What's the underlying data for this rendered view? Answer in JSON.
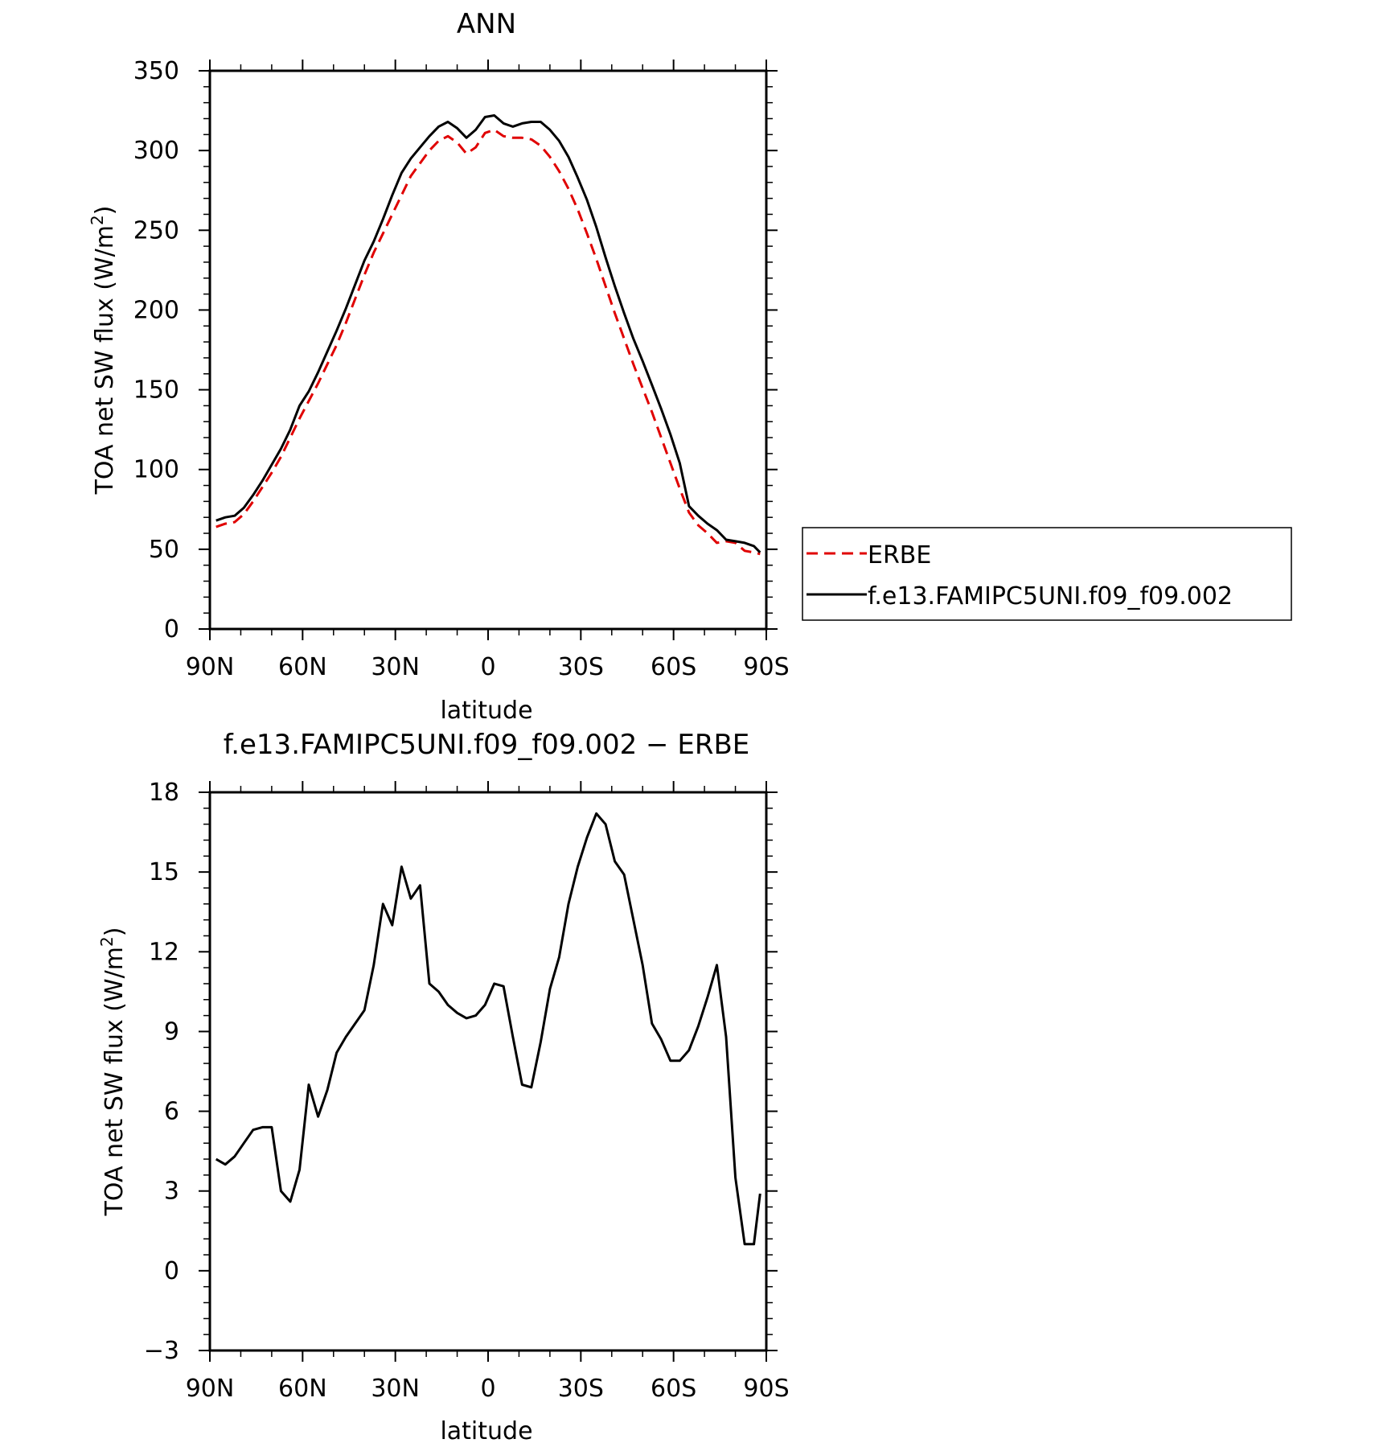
{
  "chart_data": [
    {
      "type": "line",
      "title": "ANN",
      "xlabel": "latitude",
      "ylabel": "TOA net SW flux (W/m²)",
      "xlim": [
        90,
        -90
      ],
      "ylim": [
        0,
        350
      ],
      "xticks": [
        {
          "value": 90,
          "label": "90N"
        },
        {
          "value": 60,
          "label": "60N"
        },
        {
          "value": 30,
          "label": "30N"
        },
        {
          "value": 0,
          "label": "0"
        },
        {
          "value": -30,
          "label": "30S"
        },
        {
          "value": -60,
          "label": "60S"
        },
        {
          "value": -90,
          "label": "90S"
        }
      ],
      "yticks": [
        0,
        50,
        100,
        150,
        200,
        250,
        300,
        350
      ],
      "legend_position": "right",
      "x": [
        88,
        85,
        82,
        79,
        76,
        73,
        70,
        67,
        64,
        61,
        58,
        55,
        52,
        49,
        46,
        43,
        40,
        37,
        34,
        31,
        28,
        25,
        22,
        19,
        16,
        13,
        10,
        7,
        4,
        1,
        -2,
        -5,
        -8,
        -11,
        -14,
        -17,
        -20,
        -23,
        -26,
        -29,
        -32,
        -35,
        -38,
        -41,
        -44,
        -47,
        -50,
        -53,
        -56,
        -59,
        -62,
        -65,
        -68,
        -71,
        -74,
        -77,
        -80,
        -83,
        -86,
        -88
      ],
      "series": [
        {
          "name": "ERBE",
          "color": "#e00000",
          "dash": "dashed",
          "values": [
            64,
            66,
            67,
            72,
            80,
            89,
            98,
            108,
            120,
            132,
            143,
            154,
            166,
            178,
            192,
            207,
            222,
            236,
            248,
            260,
            272,
            284,
            292,
            300,
            306,
            309,
            305,
            298,
            302,
            311,
            313,
            309,
            308,
            308,
            307,
            303,
            296,
            287,
            276,
            263,
            248,
            232,
            215,
            198,
            182,
            166,
            151,
            136,
            120,
            104,
            88,
            73,
            65,
            60,
            54,
            55,
            54,
            49,
            48,
            47
          ]
        },
        {
          "name": "f.e13.FAMIPC5UNI.f09_f09.002",
          "color": "#000000",
          "dash": "solid",
          "values": [
            68,
            70,
            71,
            76,
            84,
            93,
            103,
            113,
            125,
            140,
            149,
            161,
            174,
            187,
            201,
            216,
            231,
            243,
            257,
            272,
            286,
            295,
            302,
            309,
            315,
            318,
            314,
            308,
            313,
            321,
            322,
            317,
            315,
            317,
            318,
            318,
            313,
            306,
            296,
            283,
            269,
            252,
            233,
            215,
            198,
            182,
            168,
            153,
            138,
            122,
            104,
            77,
            71,
            66,
            62,
            56,
            55,
            54,
            52,
            48
          ]
        }
      ]
    },
    {
      "type": "line",
      "title": "f.e13.FAMIPC5UNI.f09_f09.002 − ERBE",
      "xlabel": "latitude",
      "ylabel": "TOA net SW flux (W/m²)",
      "xlim": [
        90,
        -90
      ],
      "ylim": [
        -3,
        18
      ],
      "xticks": [
        {
          "value": 90,
          "label": "90N"
        },
        {
          "value": 60,
          "label": "60N"
        },
        {
          "value": 30,
          "label": "30N"
        },
        {
          "value": 0,
          "label": "0"
        },
        {
          "value": -30,
          "label": "30S"
        },
        {
          "value": -60,
          "label": "60S"
        },
        {
          "value": -90,
          "label": "90S"
        }
      ],
      "yticks": [
        {
          "value": -3,
          "label": "−3"
        },
        {
          "value": 0,
          "label": "0"
        },
        {
          "value": 3,
          "label": "3"
        },
        {
          "value": 6,
          "label": "6"
        },
        {
          "value": 9,
          "label": "9"
        },
        {
          "value": 12,
          "label": "12"
        },
        {
          "value": 15,
          "label": "15"
        },
        {
          "value": 18,
          "label": "18"
        }
      ],
      "x": [
        88,
        85,
        82,
        79,
        76,
        73,
        70,
        67,
        64,
        61,
        58,
        55,
        52,
        49,
        46,
        43,
        40,
        37,
        34,
        31,
        28,
        25,
        22,
        19,
        16,
        13,
        10,
        7,
        4,
        1,
        -2,
        -5,
        -8,
        -11,
        -14,
        -17,
        -20,
        -23,
        -26,
        -29,
        -32,
        -35,
        -38,
        -41,
        -44,
        -47,
        -50,
        -53,
        -56,
        -59,
        -62,
        -65,
        -68,
        -71,
        -74,
        -77,
        -80,
        -83,
        -86,
        -88
      ],
      "series": [
        {
          "color": "#000000",
          "dash": "solid",
          "values": [
            4.2,
            4.0,
            4.3,
            4.8,
            5.3,
            5.4,
            5.4,
            3.0,
            2.6,
            3.8,
            7.0,
            5.8,
            6.8,
            8.2,
            8.8,
            9.3,
            9.8,
            11.5,
            13.8,
            13.0,
            15.2,
            14.0,
            14.5,
            10.8,
            10.5,
            10.0,
            9.7,
            9.5,
            9.6,
            10.0,
            10.8,
            10.7,
            8.8,
            7.0,
            6.9,
            8.6,
            10.6,
            11.8,
            13.8,
            15.2,
            16.3,
            17.2,
            16.8,
            15.4,
            14.9,
            13.2,
            11.5,
            9.3,
            8.7,
            7.9,
            7.9,
            8.3,
            9.2,
            10.3,
            11.5,
            8.8,
            3.5,
            1.0,
            1.0,
            2.9
          ]
        }
      ]
    }
  ]
}
